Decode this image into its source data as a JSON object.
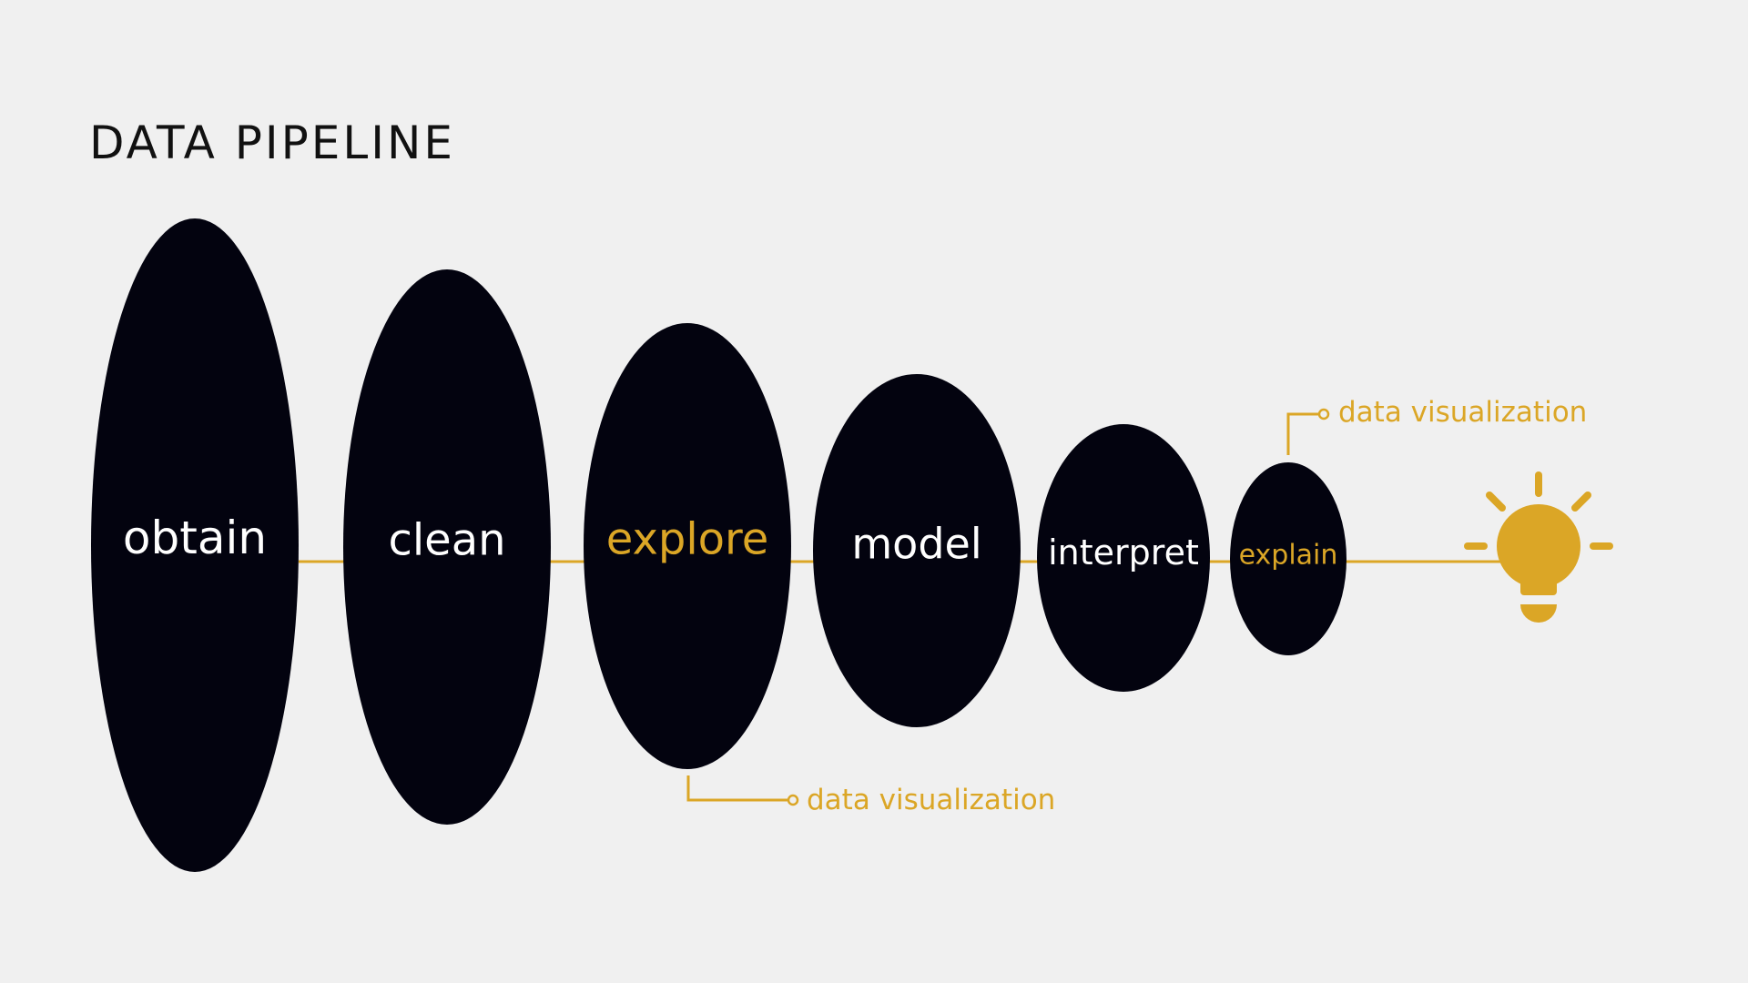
{
  "title": "DATA PIPELINE",
  "colors": {
    "background": "#f0f0f0",
    "ellipse": "#03030f",
    "accent": "#dba626",
    "stage_text": "#ffffff",
    "title_text": "#111111"
  },
  "stages": [
    {
      "label": "obtain",
      "highlight": false
    },
    {
      "label": "clean",
      "highlight": false
    },
    {
      "label": "explore",
      "highlight": true
    },
    {
      "label": "model",
      "highlight": false
    },
    {
      "label": "interpret",
      "highlight": false
    },
    {
      "label": "explain",
      "highlight": true
    }
  ],
  "annotations": [
    {
      "label": "data visualization",
      "attached_to": "explore"
    },
    {
      "label": "data visualization",
      "attached_to": "explain"
    }
  ],
  "end_icon": "lightbulb-icon"
}
